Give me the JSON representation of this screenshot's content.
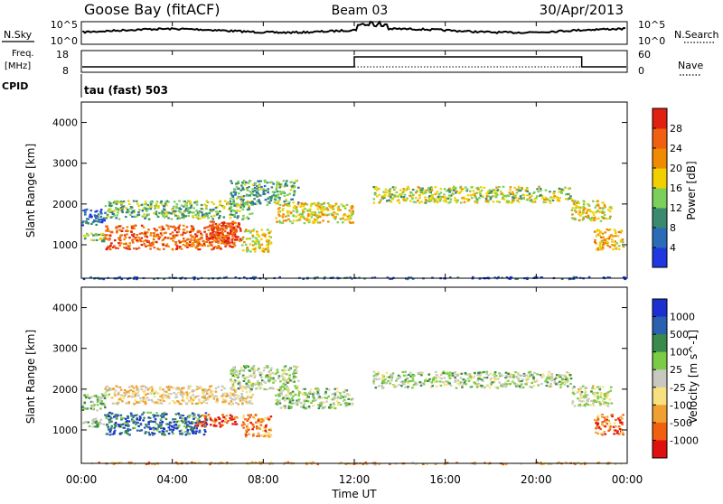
{
  "header": {
    "station": "Goose Bay (fitACF)",
    "beam": "Beam 03",
    "date": "30/Apr/2013"
  },
  "top_panels": {
    "nsky_label": "N.Sky",
    "nsearch_label": "N.Search",
    "nsky_ticks": [
      "10^5",
      "10^0"
    ],
    "nsearch_ticks": [
      "10^5",
      "10^0"
    ],
    "freq_label_line1": "Freq.",
    "freq_label_line2": "[MHz]",
    "freq_ticks": [
      "18",
      "8"
    ],
    "nave_label": "Nave",
    "nave_ticks": [
      "60",
      "0"
    ],
    "cpid_label": "CPID",
    "cpid_value": "tau (fast) 503"
  },
  "chart_data": [
    {
      "type": "heatmap",
      "title": "",
      "xlabel": "",
      "ylabel": "Slant Range [km]",
      "xlim": [
        0,
        24
      ],
      "ylim": [
        180,
        4500
      ],
      "yticks": [
        "1000",
        "2000",
        "3000",
        "4000"
      ],
      "colorbar_label": "Power [dB]",
      "colorbar_ticks": [
        "4",
        "8",
        "12",
        "16",
        "20",
        "24",
        "28"
      ],
      "colorbar_range": [
        0,
        32
      ],
      "colors": [
        "#1f38e0",
        "#2b6bb8",
        "#3a8a70",
        "#7bcf5a",
        "#f0d000",
        "#f08a00",
        "#f06010",
        "#e02010"
      ],
      "echo_regions": [
        {
          "x": [
            0.0,
            1.0
          ],
          "y": [
            1100,
            1300
          ],
          "level": 0.45
        },
        {
          "x": [
            0.0,
            1.0
          ],
          "y": [
            1500,
            1900
          ],
          "level": 0.2
        },
        {
          "x": [
            1.0,
            6.8
          ],
          "y": [
            900,
            1500
          ],
          "level": 0.8
        },
        {
          "x": [
            5.5,
            7.0
          ],
          "y": [
            1100,
            1600
          ],
          "level": 0.9
        },
        {
          "x": [
            1.0,
            7.5
          ],
          "y": [
            1650,
            2100
          ],
          "level": 0.4
        },
        {
          "x": [
            7.0,
            8.3
          ],
          "y": [
            850,
            1400
          ],
          "level": 0.55
        },
        {
          "x": [
            6.5,
            9.5
          ],
          "y": [
            2000,
            2600
          ],
          "level": 0.35
        },
        {
          "x": [
            8.5,
            11.9
          ],
          "y": [
            1550,
            2050
          ],
          "level": 0.55
        },
        {
          "x": [
            12.8,
            21.5
          ],
          "y": [
            2050,
            2450
          ],
          "level": 0.5
        },
        {
          "x": [
            21.5,
            23.3
          ],
          "y": [
            1600,
            2100
          ],
          "level": 0.55
        },
        {
          "x": [
            22.5,
            23.8
          ],
          "y": [
            900,
            1400
          ],
          "level": 0.65
        },
        {
          "x": [
            0.0,
            24.0
          ],
          "y": [
            180,
            230
          ],
          "level": 0.15
        }
      ]
    },
    {
      "type": "heatmap",
      "title": "",
      "xlabel": "Time UT",
      "ylabel": "Slant Range [km]",
      "xlim": [
        0,
        24
      ],
      "ylim": [
        180,
        4500
      ],
      "xticks": [
        "00:00",
        "04:00",
        "08:00",
        "12:00",
        "16:00",
        "20:00",
        "00:00"
      ],
      "yticks": [
        "1000",
        "2000",
        "3000",
        "4000"
      ],
      "colorbar_label": "Velocity [m s^-1]",
      "colorbar_ticks": [
        "1000",
        "500",
        "100",
        "25",
        "-25",
        "-100",
        "-500",
        "-1000"
      ],
      "colors": [
        "#1c2fd0",
        "#2b5fb0",
        "#3a8a4e",
        "#7acc44",
        "#c8c8c0",
        "#f8e080",
        "#f0a030",
        "#f06010",
        "#e01010"
      ],
      "echo_regions": [
        {
          "x": [
            0.0,
            1.0
          ],
          "y": [
            1100,
            1300
          ],
          "level": 0.4
        },
        {
          "x": [
            0.0,
            1.0
          ],
          "y": [
            1500,
            1900
          ],
          "level": 0.4
        },
        {
          "x": [
            1.0,
            5.5
          ],
          "y": [
            900,
            1450
          ],
          "level": 0.2
        },
        {
          "x": [
            5.0,
            6.8
          ],
          "y": [
            1100,
            1400
          ],
          "level": 0.9
        },
        {
          "x": [
            1.0,
            7.5
          ],
          "y": [
            1650,
            2100
          ],
          "level": 0.6
        },
        {
          "x": [
            7.0,
            8.3
          ],
          "y": [
            850,
            1400
          ],
          "level": 0.75
        },
        {
          "x": [
            6.5,
            9.5
          ],
          "y": [
            2000,
            2600
          ],
          "level": 0.45
        },
        {
          "x": [
            8.5,
            11.9
          ],
          "y": [
            1550,
            2050
          ],
          "level": 0.45
        },
        {
          "x": [
            12.8,
            21.5
          ],
          "y": [
            2050,
            2450
          ],
          "level": 0.45
        },
        {
          "x": [
            21.5,
            23.3
          ],
          "y": [
            1600,
            2100
          ],
          "level": 0.5
        },
        {
          "x": [
            22.5,
            23.8
          ],
          "y": [
            900,
            1400
          ],
          "level": 0.8
        },
        {
          "x": [
            0.0,
            24.0
          ],
          "y": [
            180,
            230
          ],
          "level": 0.7
        }
      ]
    }
  ]
}
